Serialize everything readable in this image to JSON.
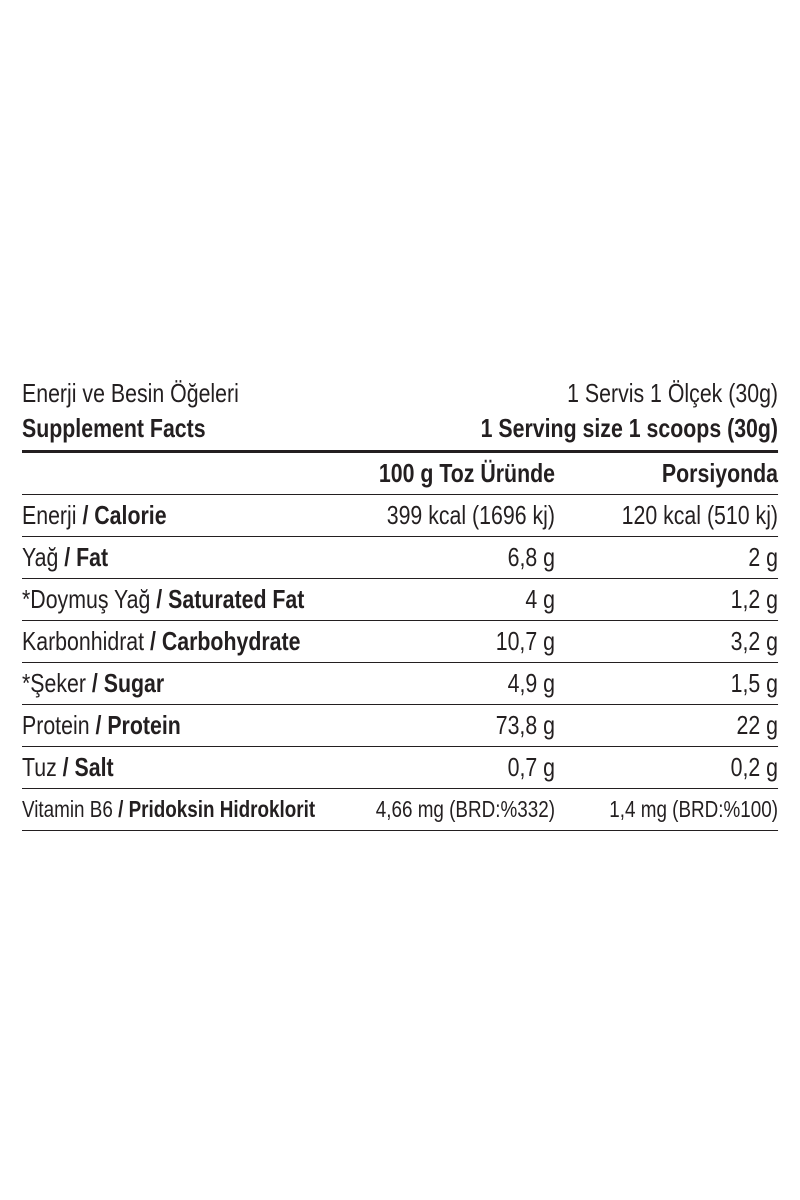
{
  "header": {
    "title_tr": "Enerji ve Besin Öğeleri",
    "serving_tr": "1 Servis 1 Ölçek (30g)",
    "title_en": "Supplement Facts",
    "serving_en": "1 Serving size 1 scoops (30g)"
  },
  "columns": {
    "per100": "100 g Toz Üründe",
    "perServing": "Porsiyonda"
  },
  "rows": [
    {
      "tr": "Enerji",
      "en": "Calorie",
      "per100": "399 kcal (1696 kj)",
      "perServing": "120 kcal (510 kj)"
    },
    {
      "tr": "Yağ",
      "en": "Fat",
      "per100": "6,8 g",
      "perServing": "2 g"
    },
    {
      "tr": "*Doymuş Yağ",
      "en": "Saturated Fat",
      "per100": "4 g",
      "perServing": "1,2 g"
    },
    {
      "tr": "Karbonhidrat",
      "en": "Carbohydrate",
      "per100": "10,7 g",
      "perServing": "3,2 g"
    },
    {
      "tr": "*Şeker",
      "en": "Sugar",
      "per100": "4,9 g",
      "perServing": "1,5 g"
    },
    {
      "tr": "Protein",
      "en": "Protein",
      "per100": "73,8 g",
      "perServing": "22 g"
    },
    {
      "tr": "Tuz",
      "en": "Salt",
      "per100": "0,7 g",
      "perServing": "0,2 g"
    },
    {
      "tr": "Vitamin B6",
      "en": "Pridoksin Hidroklorit",
      "per100": "4,66 mg (BRD:%332)",
      "perServing": "1,4 mg (BRD:%100)"
    }
  ],
  "separator": " / "
}
